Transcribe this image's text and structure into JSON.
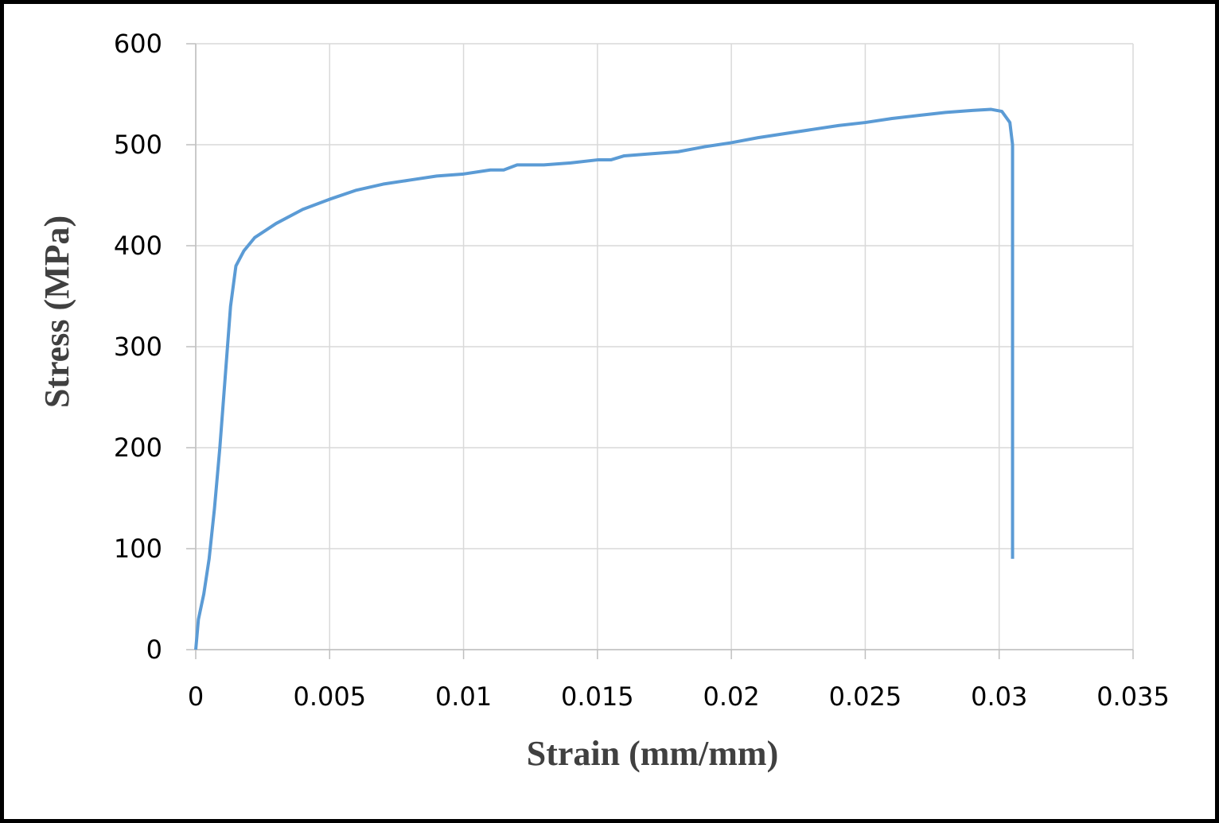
{
  "chart_data": {
    "type": "line",
    "xlabel": "Strain (mm/mm)",
    "ylabel": "Stress (MPa)",
    "xlim": [
      0,
      0.035
    ],
    "xticks": [
      0,
      0.005,
      0.01,
      0.015,
      0.02,
      0.025,
      0.03,
      0.035
    ],
    "ylim": [
      0,
      600
    ],
    "yticks": [
      0,
      100,
      200,
      300,
      400,
      500,
      600
    ],
    "grid": true,
    "x": [
      0,
      0.0001,
      0.0003,
      0.0005,
      0.0007,
      0.0009,
      0.0011,
      0.0013,
      0.0015,
      0.0018,
      0.0022,
      0.003,
      0.004,
      0.005,
      0.006,
      0.007,
      0.008,
      0.009,
      0.01,
      0.011,
      0.0115,
      0.012,
      0.013,
      0.014,
      0.015,
      0.0155,
      0.016,
      0.017,
      0.018,
      0.019,
      0.02,
      0.021,
      0.022,
      0.023,
      0.024,
      0.025,
      0.026,
      0.027,
      0.028,
      0.029,
      0.0297,
      0.0301,
      0.0304,
      0.0305,
      0.0305,
      0.0305,
      0.0305
    ],
    "series": [
      {
        "color": "#5b9bd5",
        "values": [
          0,
          30,
          55,
          90,
          140,
          200,
          270,
          340,
          380,
          395,
          408,
          422,
          436,
          446,
          455,
          461,
          465,
          469,
          471,
          475,
          475,
          480,
          480,
          482,
          485,
          485,
          489,
          491,
          493,
          498,
          502,
          507,
          511,
          515,
          519,
          522,
          526,
          529,
          532,
          534,
          535,
          533,
          522,
          500,
          400,
          200,
          90
        ]
      }
    ]
  }
}
